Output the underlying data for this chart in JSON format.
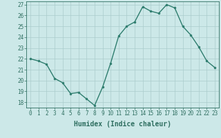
{
  "x": [
    0,
    1,
    2,
    3,
    4,
    5,
    6,
    7,
    8,
    9,
    10,
    11,
    12,
    13,
    14,
    15,
    16,
    17,
    18,
    19,
    20,
    21,
    22,
    23
  ],
  "y": [
    22.0,
    21.8,
    21.5,
    20.2,
    19.8,
    18.8,
    18.9,
    18.3,
    17.7,
    19.4,
    21.6,
    24.1,
    25.0,
    25.4,
    26.8,
    26.4,
    26.2,
    27.0,
    26.7,
    25.0,
    24.2,
    23.1,
    21.8,
    21.2
  ],
  "line_color": "#2e7d6e",
  "marker": "o",
  "marker_size": 2.0,
  "bg_color": "#cce8e8",
  "grid_color": "#aacccc",
  "xlabel": "Humidex (Indice chaleur)",
  "ylim_min": 17.5,
  "ylim_max": 27.3,
  "xlim_min": -0.5,
  "xlim_max": 23.5,
  "yticks": [
    18,
    19,
    20,
    21,
    22,
    23,
    24,
    25,
    26,
    27
  ],
  "xticks": [
    0,
    1,
    2,
    3,
    4,
    5,
    6,
    7,
    8,
    9,
    10,
    11,
    12,
    13,
    14,
    15,
    16,
    17,
    18,
    19,
    20,
    21,
    22,
    23
  ],
  "tick_color": "#2e6e60",
  "label_color": "#2e6e60",
  "spine_color": "#2e6e60",
  "tick_fontsize": 5.5,
  "xlabel_fontsize": 7.0,
  "linewidth": 1.0
}
